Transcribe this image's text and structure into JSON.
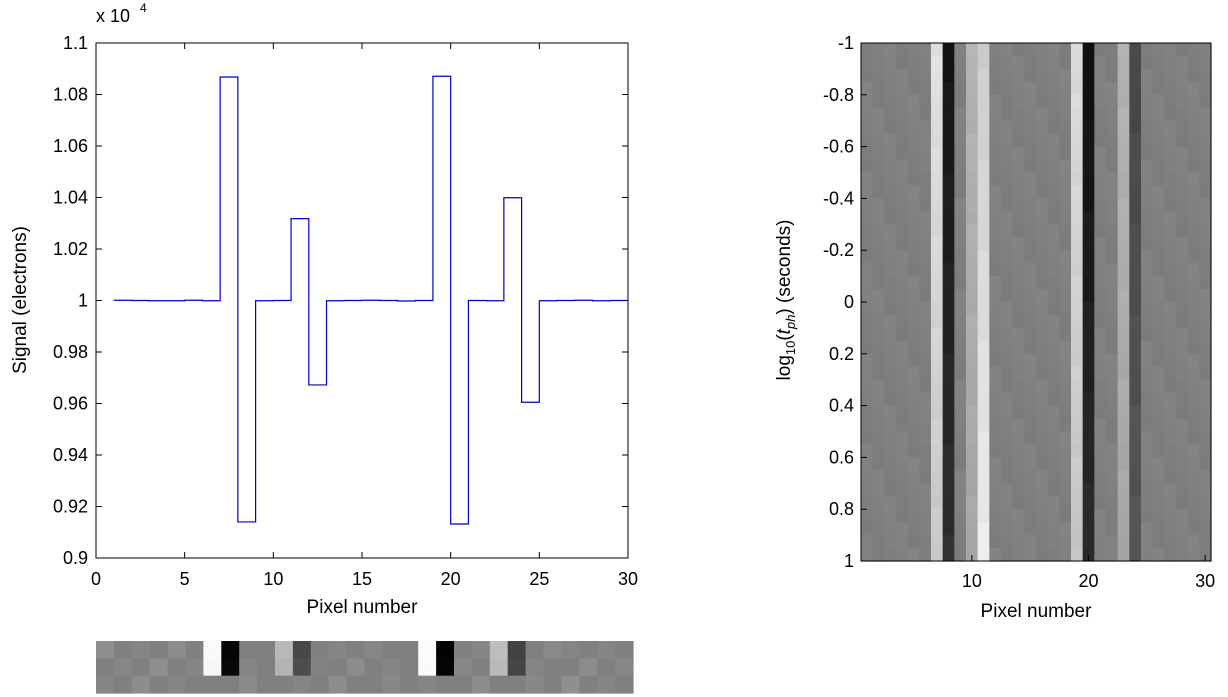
{
  "chart_data": [
    {
      "type": "line",
      "xlabel": "Pixel number",
      "ylabel": "Signal (electrons)",
      "y_multiplier": "x 10",
      "y_multiplier_exponent": "4",
      "xlim": [
        0,
        30
      ],
      "ylim": [
        0.9,
        1.1
      ],
      "x_ticks": [
        0,
        5,
        10,
        15,
        20,
        25,
        30
      ],
      "y_ticks": [
        0.9,
        0.92,
        0.94,
        0.96,
        0.98,
        1,
        1.02,
        1.04,
        1.06,
        1.08,
        1.1
      ],
      "x_tick_labels": [
        "0",
        "5",
        "10",
        "15",
        "20",
        "25",
        "30"
      ],
      "y_tick_labels": [
        "0.9",
        "0.92",
        "0.94",
        "0.96",
        "0.98",
        "1",
        "1.02",
        "1.04",
        "1.06",
        "1.08",
        "1.1"
      ],
      "grid": false,
      "line_color": "#0000cc",
      "step": true,
      "x": [
        1,
        2,
        3,
        4,
        5,
        6,
        7,
        8,
        9,
        10,
        11,
        12,
        13,
        14,
        15,
        16,
        17,
        18,
        19,
        20,
        21,
        22,
        23,
        24,
        25,
        26,
        27,
        28,
        29,
        30
      ],
      "values": [
        1.0001,
        1.0,
        0.9999,
        0.9999,
        1.0001,
        0.9999,
        1.0868,
        0.914,
        0.9999,
        1.0,
        1.0318,
        0.9672,
        0.9999,
        1.0,
        1.0001,
        1.0,
        0.9998,
        1.0,
        1.0871,
        0.9132,
        1.0,
        0.9999,
        1.0399,
        0.9605,
        0.9999,
        1.0,
        1.0001,
        0.9999,
        1.0,
        1.0
      ]
    },
    {
      "type": "heatmap",
      "xlabel": "Pixel number",
      "ylabel": "log10(tph) (seconds)",
      "ylabel_parts": {
        "pre": "log",
        "sub1": "10",
        "mid": "(",
        "italic": "t",
        "sub2": "ph",
        "post": ") (seconds)"
      },
      "xlim": [
        0.5,
        30.5
      ],
      "ylim": [
        -1,
        1
      ],
      "y_reversed": true,
      "x_ticks": [
        10,
        20,
        30
      ],
      "y_ticks": [
        -1,
        -0.8,
        -0.6,
        -0.4,
        -0.2,
        0,
        0.2,
        0.4,
        0.6,
        0.8,
        1
      ],
      "x_tick_labels": [
        "10",
        "20",
        "30"
      ],
      "y_tick_labels": [
        "-1",
        "-0.8",
        "-0.6",
        "-0.4",
        "-0.2",
        "0",
        "0.2",
        "0.4",
        "0.6",
        "0.8",
        "1"
      ],
      "colormap": "gray",
      "columns": 30,
      "rows": 40,
      "background_level": 0.5,
      "features": [
        {
          "column": 7,
          "amplitude": 0.38,
          "drift": 0.0
        },
        {
          "column": 8,
          "amplitude": -0.42,
          "drift": 0.0
        },
        {
          "column": 10,
          "amplitude": 0.2,
          "drift": 0.0
        },
        {
          "column": 11,
          "amplitude": 0.3,
          "drift": 0.2
        },
        {
          "column": 19,
          "amplitude": 0.36,
          "drift": 0.0
        },
        {
          "column": 20,
          "amplitude": -0.44,
          "drift": 0.0
        },
        {
          "column": 23,
          "amplitude": 0.2,
          "drift": 0.0
        },
        {
          "column": 24,
          "amplitude": -0.22,
          "drift": 0.0
        }
      ]
    },
    {
      "type": "heatmap",
      "colormap": "gray",
      "columns": 30,
      "rows": 3,
      "values": [
        [
          0.56,
          0.5,
          0.52,
          0.5,
          0.55,
          0.5,
          0.98,
          0.02,
          0.5,
          0.5,
          0.72,
          0.28,
          0.5,
          0.52,
          0.5,
          0.53,
          0.5,
          0.5,
          0.99,
          0.01,
          0.5,
          0.52,
          0.74,
          0.26,
          0.5,
          0.54,
          0.52,
          0.5,
          0.52,
          0.5
        ],
        [
          0.5,
          0.53,
          0.5,
          0.56,
          0.5,
          0.52,
          0.97,
          0.03,
          0.52,
          0.5,
          0.7,
          0.3,
          0.51,
          0.5,
          0.55,
          0.5,
          0.52,
          0.5,
          0.98,
          0.02,
          0.53,
          0.5,
          0.73,
          0.27,
          0.52,
          0.5,
          0.5,
          0.55,
          0.5,
          0.53
        ],
        [
          0.52,
          0.5,
          0.55,
          0.5,
          0.52,
          0.5,
          0.5,
          0.5,
          0.54,
          0.5,
          0.5,
          0.52,
          0.5,
          0.55,
          0.5,
          0.5,
          0.53,
          0.5,
          0.52,
          0.5,
          0.5,
          0.55,
          0.5,
          0.5,
          0.53,
          0.5,
          0.56,
          0.5,
          0.52,
          0.5
        ]
      ]
    }
  ]
}
